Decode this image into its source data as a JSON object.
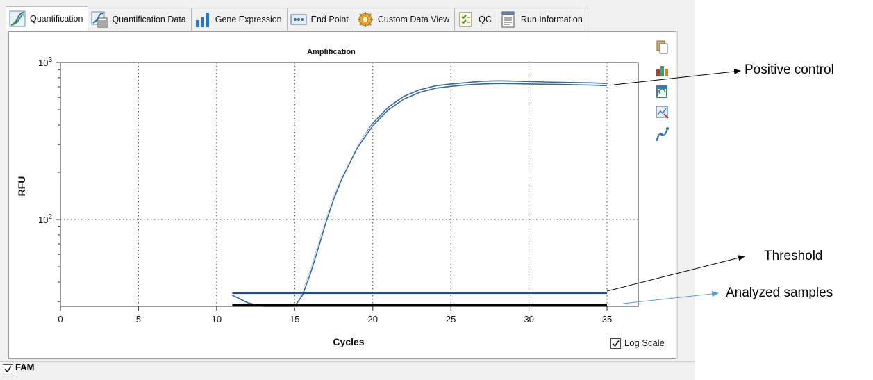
{
  "tabs": [
    {
      "label": "Quantification",
      "icon": "amplification-icon",
      "active": true
    },
    {
      "label": "Quantification Data",
      "icon": "data-table-icon"
    },
    {
      "label": "Gene Expression",
      "icon": "bar-chart-icon"
    },
    {
      "label": "End Point",
      "icon": "end-point-icon"
    },
    {
      "label": "Custom Data View",
      "icon": "gear-icon"
    },
    {
      "label": "QC",
      "icon": "checklist-icon"
    },
    {
      "label": "Run Information",
      "icon": "document-icon"
    }
  ],
  "tools": [
    "copy-icon",
    "export-icon",
    "refresh-icon",
    "zoom-icon",
    "curve-icon"
  ],
  "log_scale": {
    "label": "Log Scale",
    "checked": true
  },
  "channel": {
    "label": "FAM",
    "checked": true
  },
  "annotations": {
    "positive": "Positive control",
    "threshold": "Threshold",
    "analyzed": "Analyzed samples"
  },
  "colors": {
    "curve": "#34679f",
    "threshold": "#1f4f86",
    "baseline": "#000000",
    "annotation_arrow": "#5b9bd5"
  },
  "chart_data": {
    "type": "line",
    "title": "Amplification",
    "xlabel": "Cycles",
    "ylabel": "RFU",
    "xlim": [
      0,
      37
    ],
    "ylim": [
      28,
      1000
    ],
    "yscale": "log",
    "xticks": [
      0,
      5,
      10,
      15,
      20,
      25,
      30,
      35
    ],
    "ytick_labels": [
      {
        "base": "10",
        "exp": "3",
        "value": 1000
      },
      {
        "base": "10",
        "exp": "2",
        "value": 100
      }
    ],
    "grid": true,
    "series": [
      {
        "x": [
          11,
          12,
          13,
          14,
          15,
          15.5,
          16,
          16.5,
          17,
          17.5,
          18,
          19,
          20,
          21,
          22,
          23,
          24,
          25,
          26,
          27,
          28,
          29,
          30,
          31,
          32,
          33,
          34,
          35
        ],
        "values": [
          33,
          29.5,
          28,
          28,
          28,
          34,
          47,
          68,
          100,
          140,
          185,
          290,
          410,
          520,
          610,
          670,
          710,
          730,
          745,
          760,
          765,
          762,
          757,
          752,
          748,
          745,
          742,
          735
        ]
      },
      {
        "x": [
          11,
          12,
          13,
          14,
          15,
          15.5,
          16,
          16.5,
          17,
          17.5,
          18,
          19,
          20,
          21,
          22,
          23,
          24,
          25,
          26,
          27,
          28,
          29,
          30,
          31,
          32,
          33,
          34,
          35
        ],
        "values": [
          33,
          29.5,
          28,
          28,
          28,
          33,
          45,
          65,
          96,
          135,
          180,
          285,
          395,
          500,
          585,
          645,
          685,
          705,
          720,
          730,
          735,
          733,
          730,
          727,
          725,
          722,
          718,
          712
        ]
      },
      {
        "x": [
          11,
          35
        ],
        "values": [
          34,
          34
        ]
      },
      {
        "x": [
          11,
          35
        ],
        "values": [
          28.5,
          28.5
        ]
      }
    ]
  }
}
